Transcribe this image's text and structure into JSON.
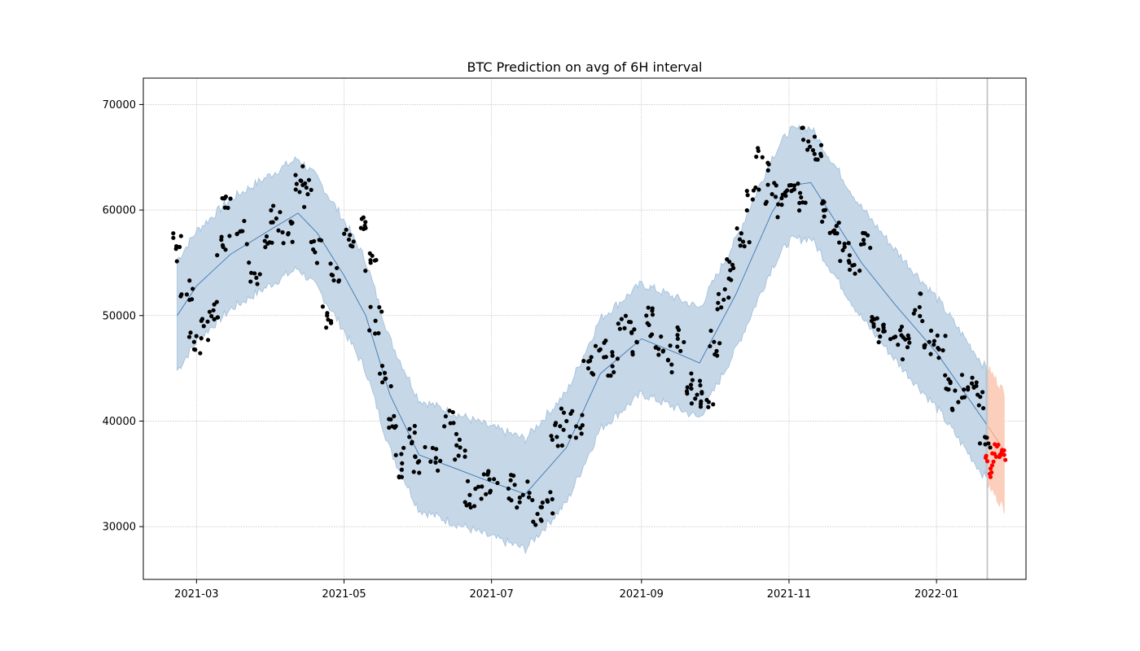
{
  "chart_data": {
    "type": "scatter",
    "title": "BTC Prediction on avg of 6H interval",
    "xlabel": "",
    "ylabel": "",
    "x_domain": [
      "2021-02-07",
      "2022-02-07"
    ],
    "ylim": [
      25000,
      72500
    ],
    "x_ticks": [
      {
        "date": "2021-03-01",
        "label": "2021-03"
      },
      {
        "date": "2021-05-01",
        "label": "2021-05"
      },
      {
        "date": "2021-07-01",
        "label": "2021-07"
      },
      {
        "date": "2021-09-01",
        "label": "2021-09"
      },
      {
        "date": "2021-11-01",
        "label": "2021-11"
      },
      {
        "date": "2022-01-01",
        "label": "2022-01"
      }
    ],
    "y_ticks": [
      {
        "value": 30000,
        "label": "30000"
      },
      {
        "value": 40000,
        "label": "40000"
      },
      {
        "value": 50000,
        "label": "50000"
      },
      {
        "value": 60000,
        "label": "60000"
      },
      {
        "value": 70000,
        "label": "70000"
      }
    ],
    "grid": true,
    "cutoff_date": "2022-01-22",
    "colors": {
      "forecast_line": "#4a7fb5",
      "band": "#c6d8e8",
      "band_edge": "#a9c4dc",
      "actual_points": "#000000",
      "future_points": "#ff0000",
      "future_band": "#fccfbd",
      "cutoff_line": "#c8c8c8",
      "grid": "#b0b0b0"
    },
    "series": [
      {
        "name": "forecast",
        "band_halfwidth": 5200,
        "points": [
          [
            "2021-02-21",
            50000
          ],
          [
            "2021-03-01",
            52800
          ],
          [
            "2021-03-15",
            55800
          ],
          [
            "2021-04-01",
            58200
          ],
          [
            "2021-04-12",
            59700
          ],
          [
            "2021-04-20",
            57800
          ],
          [
            "2021-05-01",
            53800
          ],
          [
            "2021-05-10",
            50000
          ],
          [
            "2021-05-20",
            42500
          ],
          [
            "2021-06-01",
            36800
          ],
          [
            "2021-06-15",
            35600
          ],
          [
            "2021-07-01",
            34200
          ],
          [
            "2021-07-15",
            33100
          ],
          [
            "2021-08-01",
            37500
          ],
          [
            "2021-08-15",
            44500
          ],
          [
            "2021-09-01",
            47800
          ],
          [
            "2021-09-15",
            46500
          ],
          [
            "2021-09-25",
            45500
          ],
          [
            "2021-10-10",
            52000
          ],
          [
            "2021-10-25",
            59800
          ],
          [
            "2021-11-01",
            62300
          ],
          [
            "2021-11-10",
            62600
          ],
          [
            "2021-11-20",
            59000
          ],
          [
            "2021-12-01",
            55000
          ],
          [
            "2021-12-15",
            51000
          ],
          [
            "2022-01-01",
            46500
          ],
          [
            "2022-01-22",
            39600
          ]
        ]
      },
      {
        "name": "future_forecast",
        "band_halfwidth": 5500,
        "points": [
          [
            "2022-01-22",
            39600
          ],
          [
            "2022-01-29",
            37200
          ]
        ]
      },
      {
        "name": "actual",
        "points": [
          [
            "2021-02-22",
            56500
          ],
          [
            "2021-02-25",
            52000
          ],
          [
            "2021-02-28",
            47500
          ],
          [
            "2021-03-04",
            49000
          ],
          [
            "2021-03-08",
            50500
          ],
          [
            "2021-03-12",
            56500
          ],
          [
            "2021-03-14",
            60200
          ],
          [
            "2021-03-20",
            58000
          ],
          [
            "2021-03-25",
            54000
          ],
          [
            "2021-03-30",
            57500
          ],
          [
            "2021-04-03",
            59200
          ],
          [
            "2021-04-08",
            57800
          ],
          [
            "2021-04-13",
            62800
          ],
          [
            "2021-04-16",
            61500
          ],
          [
            "2021-04-19",
            56000
          ],
          [
            "2021-04-24",
            50000
          ],
          [
            "2021-04-28",
            54500
          ],
          [
            "2021-05-03",
            57200
          ],
          [
            "2021-05-08",
            58300
          ],
          [
            "2021-05-12",
            55000
          ],
          [
            "2021-05-14",
            49500
          ],
          [
            "2021-05-18",
            44000
          ],
          [
            "2021-05-21",
            39500
          ],
          [
            "2021-05-25",
            36000
          ],
          [
            "2021-05-28",
            38500
          ],
          [
            "2021-06-01",
            36200
          ],
          [
            "2021-06-08",
            36500
          ],
          [
            "2021-06-14",
            39800
          ],
          [
            "2021-06-18",
            37500
          ],
          [
            "2021-06-22",
            33000
          ],
          [
            "2021-06-27",
            33800
          ],
          [
            "2021-07-02",
            34500
          ],
          [
            "2021-07-08",
            33600
          ],
          [
            "2021-07-14",
            33000
          ],
          [
            "2021-07-20",
            31200
          ],
          [
            "2021-07-24",
            32500
          ],
          [
            "2021-07-28",
            38500
          ],
          [
            "2021-08-01",
            40000
          ],
          [
            "2021-08-05",
            39500
          ],
          [
            "2021-08-10",
            45000
          ],
          [
            "2021-08-15",
            46800
          ],
          [
            "2021-08-20",
            45200
          ],
          [
            "2021-08-25",
            48800
          ],
          [
            "2021-08-30",
            47500
          ],
          [
            "2021-09-03",
            50000
          ],
          [
            "2021-09-07",
            47000
          ],
          [
            "2021-09-12",
            45800
          ],
          [
            "2021-09-16",
            47800
          ],
          [
            "2021-09-20",
            43200
          ],
          [
            "2021-09-24",
            42500
          ],
          [
            "2021-09-28",
            42000
          ],
          [
            "2021-10-01",
            47500
          ],
          [
            "2021-10-05",
            51500
          ],
          [
            "2021-10-09",
            54500
          ],
          [
            "2021-10-13",
            57000
          ],
          [
            "2021-10-17",
            61000
          ],
          [
            "2021-10-21",
            65000
          ],
          [
            "2021-10-25",
            61500
          ],
          [
            "2021-10-29",
            60500
          ],
          [
            "2021-11-02",
            61800
          ],
          [
            "2021-11-06",
            61200
          ],
          [
            "2021-11-09",
            66500
          ],
          [
            "2021-11-12",
            64800
          ],
          [
            "2021-11-16",
            60000
          ],
          [
            "2021-11-20",
            57800
          ],
          [
            "2021-11-24",
            56500
          ],
          [
            "2021-11-28",
            54800
          ],
          [
            "2021-12-02",
            56800
          ],
          [
            "2021-12-06",
            49200
          ],
          [
            "2021-12-10",
            48500
          ],
          [
            "2021-12-15",
            48000
          ],
          [
            "2021-12-20",
            47000
          ],
          [
            "2021-12-25",
            50800
          ],
          [
            "2021-12-29",
            47500
          ],
          [
            "2022-01-02",
            46800
          ],
          [
            "2022-01-06",
            43000
          ],
          [
            "2022-01-10",
            41800
          ],
          [
            "2022-01-14",
            43200
          ],
          [
            "2022-01-18",
            42500
          ],
          [
            "2022-01-21",
            38500
          ]
        ]
      },
      {
        "name": "future_actual",
        "points": [
          [
            "2022-01-22",
            36200
          ],
          [
            "2022-01-23",
            35000
          ],
          [
            "2022-01-24",
            35800
          ],
          [
            "2022-01-25",
            36900
          ],
          [
            "2022-01-26",
            37600
          ],
          [
            "2022-01-27",
            36600
          ],
          [
            "2022-01-28",
            37100
          ],
          [
            "2022-01-29",
            36800
          ]
        ]
      }
    ]
  }
}
